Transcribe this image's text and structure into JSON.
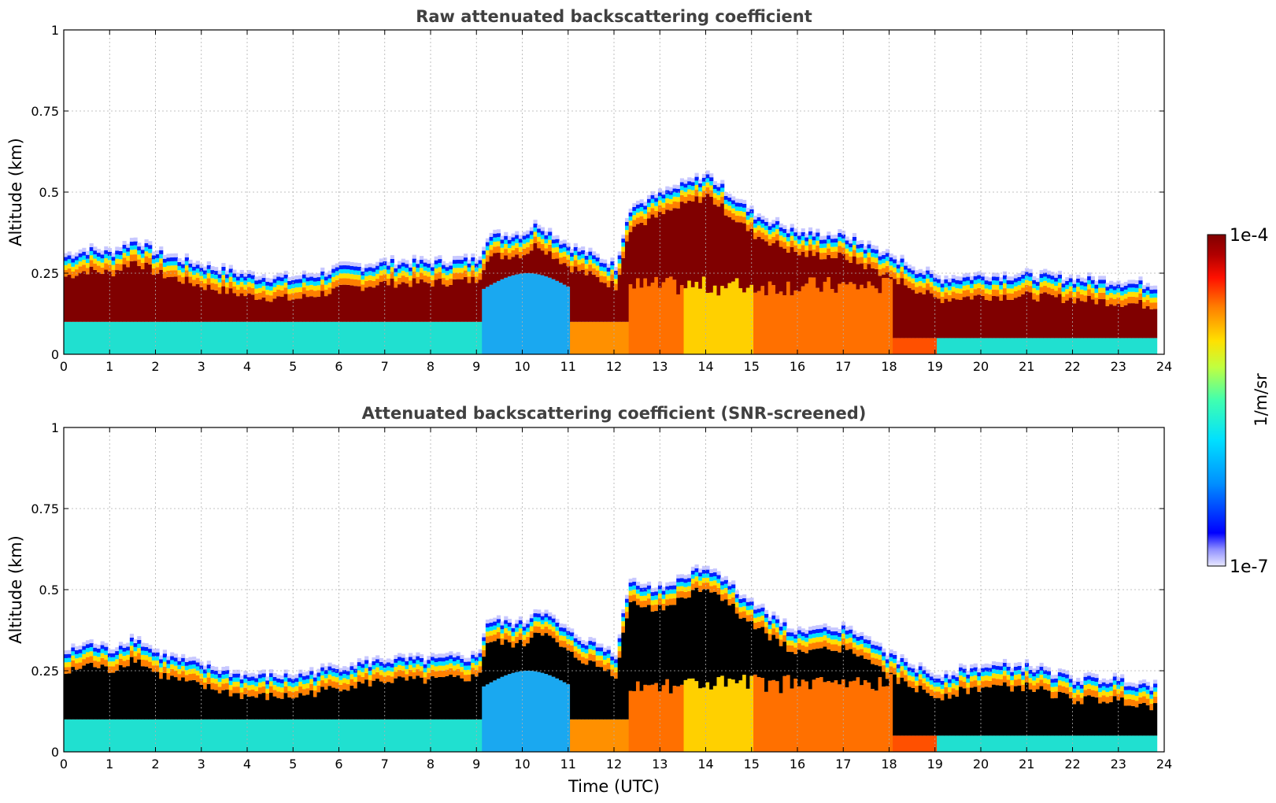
{
  "chart_data": [
    {
      "type": "heatmap",
      "title": "Raw attenuated backscattering coefficient",
      "xlabel": "",
      "ylabel": "Altitude (km)",
      "xlim": [
        0,
        24
      ],
      "ylim": [
        0,
        1
      ],
      "xticks": [
        "0",
        "1",
        "2",
        "3",
        "4",
        "5",
        "6",
        "7",
        "8",
        "9",
        "10",
        "11",
        "12",
        "13",
        "14",
        "15",
        "16",
        "17",
        "18",
        "19",
        "20",
        "21",
        "22",
        "23",
        "24"
      ],
      "yticks": [
        "0",
        "0.25",
        "0.5",
        "0.75",
        "1"
      ],
      "grid": true,
      "screened": false,
      "layer_top_km": {
        "time_utc": [
          0,
          0.5,
          1,
          1.5,
          2,
          3,
          4,
          5,
          6,
          7,
          8,
          9,
          9.2,
          10,
          10.3,
          11,
          12,
          12.3,
          13,
          14,
          15,
          16,
          17,
          18,
          19,
          20,
          21,
          22,
          23,
          23.8
        ],
        "top": [
          0.3,
          0.32,
          0.31,
          0.35,
          0.31,
          0.27,
          0.24,
          0.23,
          0.26,
          0.28,
          0.28,
          0.29,
          0.36,
          0.37,
          0.4,
          0.33,
          0.27,
          0.45,
          0.49,
          0.55,
          0.43,
          0.37,
          0.36,
          0.3,
          0.23,
          0.24,
          0.24,
          0.23,
          0.22,
          0.21
        ]
      }
    },
    {
      "type": "heatmap",
      "title": "Attenuated backscattering coefficient (SNR-screened)",
      "xlabel": "Time (UTC)",
      "ylabel": "Altitude (km)",
      "xlim": [
        0,
        24
      ],
      "ylim": [
        0,
        1
      ],
      "xticks": [
        "0",
        "1",
        "2",
        "3",
        "4",
        "5",
        "6",
        "7",
        "8",
        "9",
        "10",
        "11",
        "12",
        "13",
        "14",
        "15",
        "16",
        "17",
        "18",
        "19",
        "20",
        "21",
        "22",
        "23",
        "24"
      ],
      "yticks": [
        "0",
        "0.25",
        "0.5",
        "0.75",
        "1"
      ],
      "grid": true,
      "screened": true,
      "layer_top_km": {
        "time_utc": [
          0,
          0.5,
          1,
          1.5,
          2,
          3,
          4,
          5,
          6,
          7,
          8,
          9,
          9.2,
          10,
          10.3,
          11,
          12,
          12.3,
          13,
          14,
          15,
          16,
          17,
          18,
          19,
          20,
          21,
          22,
          23,
          23.8
        ],
        "top": [
          0.3,
          0.33,
          0.31,
          0.35,
          0.3,
          0.26,
          0.23,
          0.23,
          0.26,
          0.28,
          0.28,
          0.29,
          0.4,
          0.39,
          0.44,
          0.36,
          0.3,
          0.52,
          0.5,
          0.57,
          0.45,
          0.36,
          0.38,
          0.29,
          0.23,
          0.26,
          0.26,
          0.22,
          0.22,
          0.2
        ]
      }
    }
  ],
  "colorbar": {
    "max_label": "1e-4",
    "min_label": "1e-7",
    "label": "1/m/sr",
    "colors": [
      "#e8e8ff",
      "#0000ff",
      "#0090ff",
      "#00e0ff",
      "#40ffb0",
      "#c0ff40",
      "#ffe000",
      "#ff8000",
      "#ff1000",
      "#b00000",
      "#800000"
    ]
  }
}
